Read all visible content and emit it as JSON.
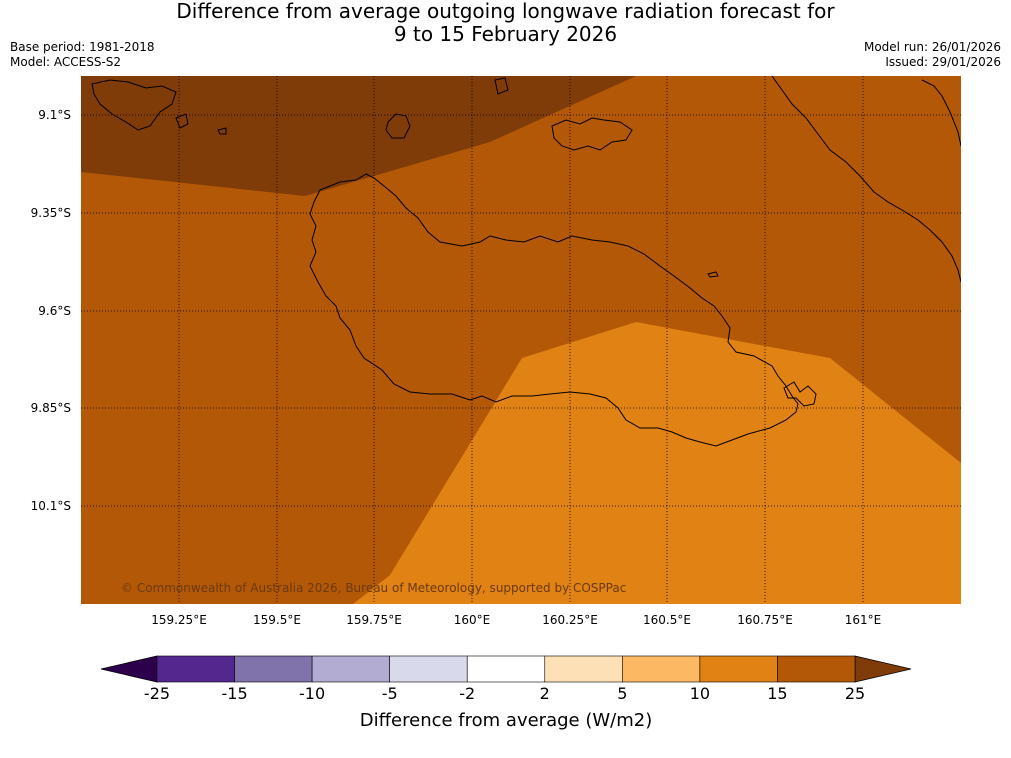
{
  "header": {
    "title_line1": "Difference from average outgoing longwave radiation forecast for",
    "title_line2": "9 to 15 February 2026",
    "base_period": "Base period: 1981-2018",
    "model": "Model: ACCESS-S2",
    "model_run": "Model run: 26/01/2026",
    "issued": "Issued: 29/01/2026"
  },
  "map": {
    "lat_labels": [
      "9.1°S",
      "9.35°S",
      "9.6°S",
      "9.85°S",
      "10.1°S"
    ],
    "lon_labels": [
      "159.25°E",
      "159.5°E",
      "159.75°E",
      "160°E",
      "160.25°E",
      "160.5°E",
      "160.75°E",
      "161°E"
    ],
    "copyright": "© Commonwealth of Australia 2026, Bureau of Meteorology, supported by COSPPac"
  },
  "colorbar": {
    "ticks": [
      "-25",
      "-15",
      "-10",
      "-5",
      "-2",
      "2",
      "5",
      "10",
      "15",
      "25"
    ],
    "colors": [
      "#54278f",
      "#8073ac",
      "#b2abd2",
      "#d8daeb",
      "#ffffff",
      "#fee0b6",
      "#fdb863",
      "#e08214",
      "#b35806"
    ],
    "under_color": "#2d004b",
    "over_color": "#7f3b08",
    "label": "Difference from average (W/m2)"
  }
}
